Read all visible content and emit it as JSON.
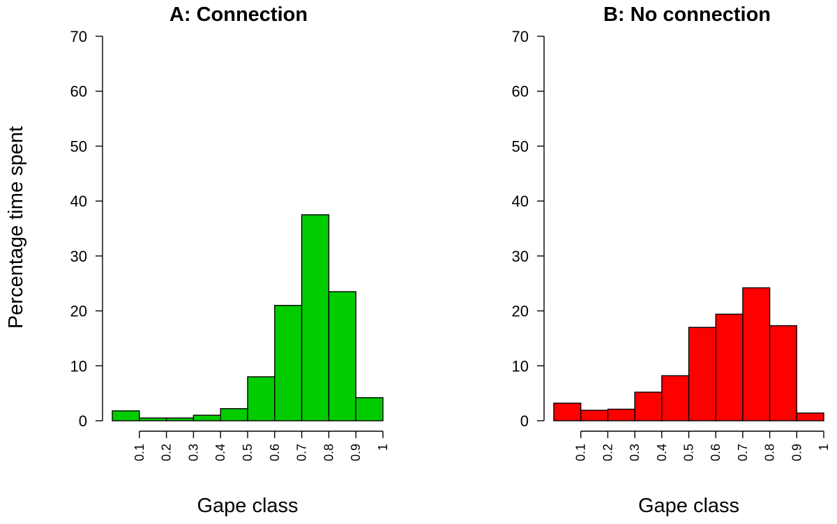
{
  "shared": {
    "ylabel": "Percentage time spent"
  },
  "chart_data": [
    {
      "type": "bar",
      "title": "A: Connection",
      "xlabel": "Gape class",
      "ylabel": "Percentage time spent",
      "bin_edges": [
        0,
        0.1,
        0.2,
        0.3,
        0.4,
        0.5,
        0.6,
        0.7,
        0.8,
        0.9,
        1
      ],
      "categories": [
        "0.1",
        "0.2",
        "0.3",
        "0.4",
        "0.5",
        "0.6",
        "0.7",
        "0.8",
        "0.9",
        "1"
      ],
      "values": [
        1.8,
        0.5,
        0.5,
        1.0,
        2.2,
        8.0,
        21.0,
        37.5,
        23.5,
        4.2
      ],
      "ylim": [
        0,
        70
      ],
      "yticks": [
        0,
        10,
        20,
        30,
        40,
        50,
        60,
        70
      ],
      "color": "#00cc00",
      "grid": false,
      "legend": "none"
    },
    {
      "type": "bar",
      "title": "B: No connection",
      "xlabel": "Gape class",
      "ylabel": "",
      "bin_edges": [
        0,
        0.1,
        0.2,
        0.3,
        0.4,
        0.5,
        0.6,
        0.7,
        0.8,
        0.9,
        1
      ],
      "categories": [
        "0.1",
        "0.2",
        "0.3",
        "0.4",
        "0.5",
        "0.6",
        "0.7",
        "0.8",
        "0.9",
        "1"
      ],
      "values": [
        3.2,
        1.9,
        2.1,
        5.2,
        8.2,
        17.0,
        19.4,
        24.2,
        17.3,
        1.4
      ],
      "ylim": [
        0,
        70
      ],
      "yticks": [
        0,
        10,
        20,
        30,
        40,
        50,
        60,
        70
      ],
      "color": "#ff0000",
      "grid": false,
      "legend": "none"
    }
  ]
}
